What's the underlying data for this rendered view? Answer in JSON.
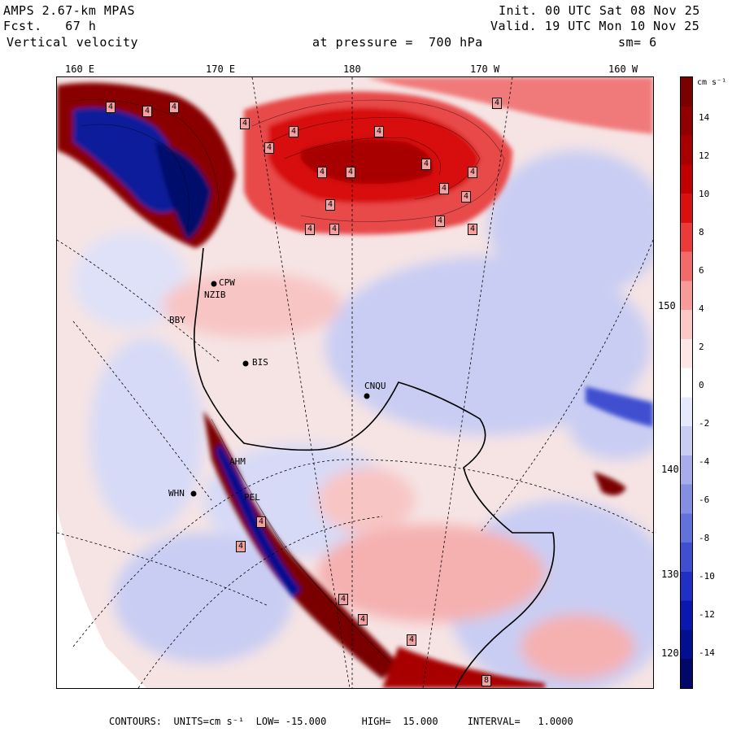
{
  "header": {
    "model": "AMPS 2.67-km MPAS",
    "forecast": "Fcst.   67 h",
    "variable": "Vertical velocity",
    "init": "Init. 00 UTC Sat 08 Nov 25",
    "valid": "Valid. 19 UTC Mon 10 Nov 25",
    "level": "at pressure =  700 hPa",
    "smoothing": "sm= 6"
  },
  "longitude_labels": [
    "160 E",
    "170 E",
    "180",
    "170 W",
    "160 W"
  ],
  "latitude_labels": [
    "150 W",
    "140 W",
    "130 W",
    "120 W"
  ],
  "stations": [
    "CPW",
    "NZIB",
    "BBY",
    "BIS",
    "CNQU",
    "AHM",
    "WHN",
    "PEL"
  ],
  "colorbar": {
    "unit": "cm s⁻¹",
    "ticks": [
      "14",
      "12",
      "10",
      "8",
      "6",
      "4",
      "2",
      "0",
      "-2",
      "-4",
      "-6",
      "-8",
      "-10",
      "-12",
      "-14"
    ],
    "colors": [
      "#7a0000",
      "#900000",
      "#a80000",
      "#c00000",
      "#d81010",
      "#ea3a3a",
      "#f26a6a",
      "#f79a9a",
      "#fbc7c7",
      "#fde6e6",
      "#ffffff",
      "#e6e8fb",
      "#c9cdf3",
      "#a7adeb",
      "#858fe2",
      "#6371da",
      "#3f4fd0",
      "#2030c4",
      "#0a18b0",
      "#040e90",
      "#02086a"
    ]
  },
  "footer": "CONTOURS:  UNITS=cm s⁻¹  LOW= -15.000      HIGH=  15.000     INTERVAL=   1.0000",
  "map_labels": [
    "4",
    "4",
    "4",
    "4",
    "4",
    "4",
    "4",
    "4",
    "4",
    "4",
    "4",
    "4",
    "4",
    "4",
    "4",
    "4",
    "4",
    "4",
    "4",
    "4",
    "4",
    "4",
    "4",
    "4",
    "8"
  ]
}
